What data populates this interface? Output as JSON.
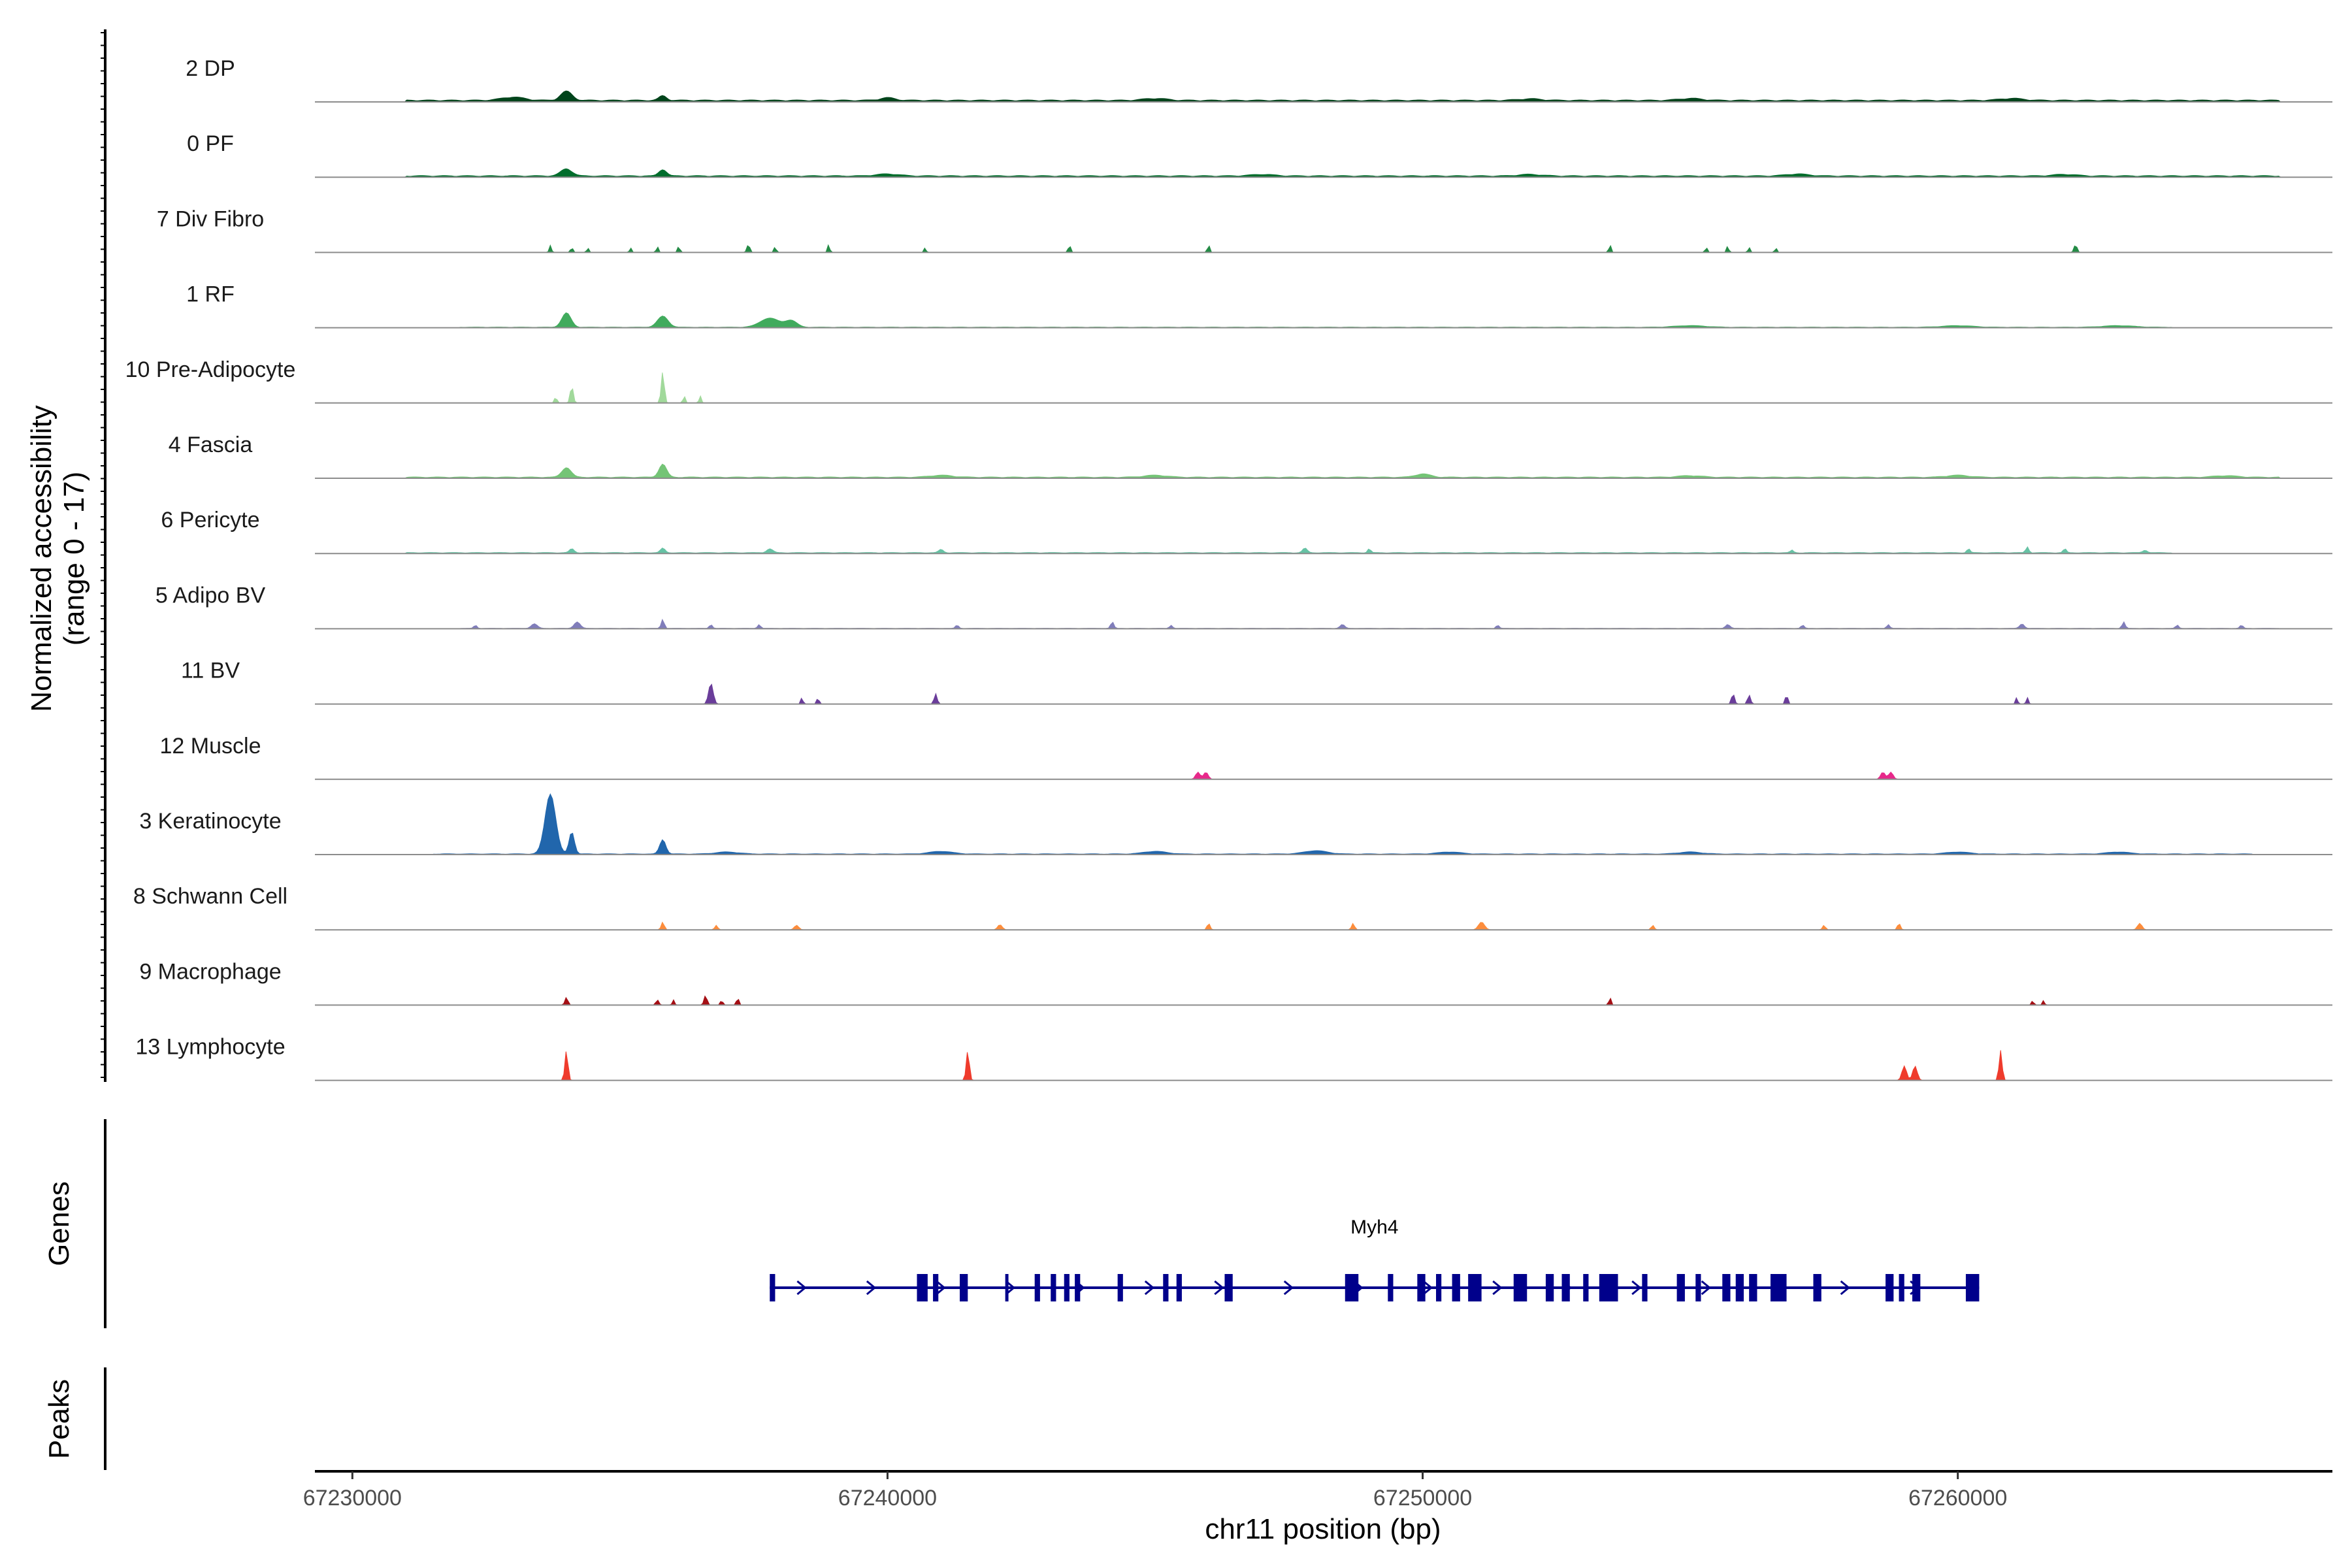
{
  "chart_data": {
    "type": "area",
    "title": "",
    "chromosome": "chr11",
    "xlabel": "chr11 position (bp)",
    "xlim": [
      67229300,
      67267000
    ],
    "xticks": [
      67230000,
      67240000,
      67250000,
      67260000
    ],
    "xtick_labels": [
      "67230000",
      "67240000",
      "67250000",
      "67260000"
    ],
    "accessibility_axis": {
      "label_line1": "Normalized accessibility",
      "label_line2": "(range 0 - 17)",
      "ylim": [
        0,
        17
      ]
    },
    "genes_label": "Genes",
    "peaks_label": "Peaks",
    "tracks": [
      {
        "name": "2 DP",
        "color": "#00441b",
        "baseline": 0.15,
        "peaks": [
          [
            67234000,
            0.7,
            150
          ],
          [
            67235800,
            0.35,
            100
          ],
          [
            67233000,
            0.25,
            300
          ],
          [
            67240000,
            0.2,
            200
          ],
          [
            67245000,
            0.15,
            300
          ],
          [
            67252000,
            0.12,
            300
          ],
          [
            67255000,
            0.15,
            300
          ],
          [
            67261000,
            0.15,
            300
          ]
        ],
        "range": [
          67231000,
          67266000
        ]
      },
      {
        "name": "0 PF",
        "color": "#006d2c",
        "baseline": 0.12,
        "peaks": [
          [
            67234000,
            0.55,
            150
          ],
          [
            67235800,
            0.5,
            100
          ],
          [
            67240000,
            0.15,
            300
          ],
          [
            67247000,
            0.12,
            300
          ],
          [
            67252000,
            0.12,
            300
          ],
          [
            67257000,
            0.15,
            300
          ],
          [
            67262000,
            0.12,
            300
          ]
        ],
        "range": [
          67231000,
          67266000
        ]
      },
      {
        "name": "7 Div Fibro",
        "color": "#238b45",
        "baseline": 0,
        "peaks": [
          [
            67233700,
            0.55,
            30
          ],
          [
            67234100,
            0.4,
            30
          ],
          [
            67234400,
            0.35,
            30
          ],
          [
            67235200,
            0.35,
            30
          ],
          [
            67235700,
            0.45,
            30
          ],
          [
            67236100,
            0.5,
            30
          ],
          [
            67237400,
            0.6,
            40
          ],
          [
            67237900,
            0.45,
            30
          ],
          [
            67238900,
            0.6,
            30
          ],
          [
            67240700,
            0.35,
            30
          ],
          [
            67243400,
            0.6,
            30
          ],
          [
            67246000,
            0.6,
            30
          ],
          [
            67253500,
            0.6,
            30
          ],
          [
            67255300,
            0.4,
            30
          ],
          [
            67255700,
            0.5,
            30
          ],
          [
            67256100,
            0.4,
            30
          ],
          [
            67256600,
            0.35,
            30
          ],
          [
            67262200,
            0.6,
            40
          ]
        ],
        "range": [
          67233000,
          67263000
        ]
      },
      {
        "name": "1 RF",
        "color": "#41ab5d",
        "baseline": 0.05,
        "peaks": [
          [
            67234000,
            1.1,
            120
          ],
          [
            67235800,
            0.85,
            140
          ],
          [
            67237800,
            0.7,
            250
          ],
          [
            67238200,
            0.5,
            150
          ],
          [
            67255000,
            0.12,
            400
          ],
          [
            67260000,
            0.12,
            400
          ],
          [
            67263000,
            0.12,
            400
          ]
        ],
        "range": [
          67232000,
          67264000
        ]
      },
      {
        "name": "10 Pre-Adipocyte",
        "color": "#a1d99b",
        "baseline": 0,
        "peaks": [
          [
            67233800,
            0.5,
            30
          ],
          [
            67234100,
            1.3,
            40
          ],
          [
            67235800,
            2.4,
            40
          ],
          [
            67236200,
            0.55,
            30
          ],
          [
            67236500,
            0.55,
            30
          ]
        ],
        "range": [
          67233500,
          67236800
        ]
      },
      {
        "name": "4 Fascia",
        "color": "#74c476",
        "baseline": 0.1,
        "peaks": [
          [
            67234000,
            0.75,
            120
          ],
          [
            67235800,
            1.0,
            100
          ],
          [
            67241000,
            0.15,
            300
          ],
          [
            67245000,
            0.15,
            300
          ],
          [
            67250000,
            0.25,
            200
          ],
          [
            67255000,
            0.12,
            300
          ],
          [
            67260000,
            0.15,
            300
          ],
          [
            67265000,
            0.12,
            300
          ]
        ],
        "range": [
          67231000,
          67266000
        ]
      },
      {
        "name": "6 Pericyte",
        "color": "#66c2a4",
        "baseline": 0.08,
        "peaks": [
          [
            67234100,
            0.3,
            60
          ],
          [
            67235800,
            0.35,
            60
          ],
          [
            67237800,
            0.3,
            80
          ],
          [
            67241000,
            0.25,
            60
          ],
          [
            67247800,
            0.35,
            60
          ],
          [
            67249000,
            0.3,
            40
          ],
          [
            67256900,
            0.2,
            40
          ],
          [
            67260200,
            0.3,
            40
          ],
          [
            67261300,
            0.45,
            40
          ],
          [
            67262000,
            0.3,
            40
          ],
          [
            67263500,
            0.2,
            60
          ]
        ],
        "range": [
          67231000,
          67264000
        ]
      },
      {
        "name": "5 Adipo BV",
        "color": "#807dba",
        "baseline": 0.04,
        "peaks": [
          [
            67232300,
            0.25,
            40
          ],
          [
            67233400,
            0.35,
            80
          ],
          [
            67234200,
            0.5,
            80
          ],
          [
            67235800,
            0.7,
            40
          ],
          [
            67236700,
            0.3,
            40
          ],
          [
            67237600,
            0.3,
            40
          ],
          [
            67241300,
            0.25,
            40
          ],
          [
            67244200,
            0.5,
            40
          ],
          [
            67245300,
            0.25,
            40
          ],
          [
            67248500,
            0.3,
            60
          ],
          [
            67251400,
            0.25,
            40
          ],
          [
            67255700,
            0.3,
            60
          ],
          [
            67257100,
            0.25,
            40
          ],
          [
            67258700,
            0.3,
            40
          ],
          [
            67261200,
            0.35,
            60
          ],
          [
            67263100,
            0.5,
            40
          ],
          [
            67264100,
            0.25,
            40
          ],
          [
            67265300,
            0.25,
            40
          ]
        ],
        "range": [
          67232000,
          67266000
        ]
      },
      {
        "name": "11 BV",
        "color": "#6a3d9a",
        "baseline": 0,
        "peaks": [
          [
            67236700,
            1.6,
            60
          ],
          [
            67238400,
            0.5,
            30
          ],
          [
            67238700,
            0.5,
            30
          ],
          [
            67240900,
            0.8,
            40
          ],
          [
            67255800,
            0.8,
            40
          ],
          [
            67256100,
            0.7,
            40
          ],
          [
            67256800,
            0.8,
            30
          ],
          [
            67261100,
            0.5,
            30
          ],
          [
            67261300,
            0.5,
            30
          ]
        ],
        "range": [
          67236000,
          67262000
        ]
      },
      {
        "name": "12 Muscle",
        "color": "#e7298a",
        "baseline": 0,
        "peaks": [
          [
            67245800,
            0.55,
            60
          ],
          [
            67245950,
            0.55,
            60
          ],
          [
            67258600,
            0.55,
            60
          ],
          [
            67258750,
            0.55,
            60
          ]
        ],
        "range": [
          67245000,
          67259000
        ]
      },
      {
        "name": "3 Keratinocyte",
        "color": "#2166ac",
        "baseline": 0.06,
        "peaks": [
          [
            67233700,
            4.6,
            140
          ],
          [
            67234100,
            1.7,
            70
          ],
          [
            67235800,
            1.1,
            80
          ],
          [
            67237000,
            0.15,
            300
          ],
          [
            67241000,
            0.2,
            300
          ],
          [
            67245000,
            0.2,
            300
          ],
          [
            67248000,
            0.25,
            300
          ],
          [
            67250500,
            0.15,
            300
          ],
          [
            67255000,
            0.15,
            300
          ],
          [
            67260000,
            0.15,
            300
          ],
          [
            67263000,
            0.15,
            300
          ]
        ],
        "range": [
          67231500,
          67265500
        ]
      },
      {
        "name": "8 Schwann Cell",
        "color": "#fd8d3c",
        "baseline": 0,
        "peaks": [
          [
            67235800,
            0.6,
            40
          ],
          [
            67236800,
            0.35,
            40
          ],
          [
            67238300,
            0.35,
            60
          ],
          [
            67242100,
            0.4,
            60
          ],
          [
            67246000,
            0.5,
            40
          ],
          [
            67248700,
            0.5,
            40
          ],
          [
            67251100,
            0.6,
            80
          ],
          [
            67254300,
            0.35,
            40
          ],
          [
            67257500,
            0.35,
            40
          ],
          [
            67258900,
            0.5,
            40
          ],
          [
            67263400,
            0.5,
            60
          ]
        ],
        "range": [
          67235500,
          67264000
        ]
      },
      {
        "name": "9 Macrophage",
        "color": "#a50f15",
        "baseline": 0,
        "peaks": [
          [
            67234000,
            0.6,
            40
          ],
          [
            67235700,
            0.4,
            40
          ],
          [
            67236000,
            0.4,
            30
          ],
          [
            67236600,
            0.75,
            40
          ],
          [
            67236900,
            0.4,
            30
          ],
          [
            67237200,
            0.6,
            30
          ],
          [
            67253500,
            0.6,
            30
          ],
          [
            67261400,
            0.35,
            30
          ],
          [
            67261600,
            0.35,
            30
          ]
        ],
        "range": [
          67233800,
          67262000
        ]
      },
      {
        "name": "13 Lymphocyte",
        "color": "#ef3b2c",
        "baseline": 0,
        "peaks": [
          [
            67234000,
            2.3,
            40
          ],
          [
            67241500,
            2.3,
            40
          ],
          [
            67259000,
            1.1,
            60
          ],
          [
            67259200,
            1.1,
            60
          ],
          [
            67260800,
            2.3,
            40
          ]
        ],
        "range": [
          67233800,
          67261000
        ]
      }
    ],
    "gene": {
      "name": "Myh4",
      "strand": "+",
      "start": 67237800,
      "end": 67260400,
      "color": "#00008b",
      "exons": [
        [
          67237800,
          67237900
        ],
        [
          67240550,
          67240750
        ],
        [
          67240850,
          67240950
        ],
        [
          67241350,
          67241500
        ],
        [
          67242200,
          67242260
        ],
        [
          67242750,
          67242850
        ],
        [
          67243050,
          67243150
        ],
        [
          67243300,
          67243400
        ],
        [
          67243500,
          67243600
        ],
        [
          67244300,
          67244400
        ],
        [
          67245150,
          67245250
        ],
        [
          67245400,
          67245500
        ],
        [
          67246300,
          67246450
        ],
        [
          67248550,
          67248800
        ],
        [
          67249350,
          67249450
        ],
        [
          67249900,
          67250050
        ],
        [
          67250250,
          67250350
        ],
        [
          67250550,
          67250700
        ],
        [
          67250850,
          67251100
        ],
        [
          67251700,
          67251950
        ],
        [
          67252300,
          67252450
        ],
        [
          67252600,
          67252750
        ],
        [
          67253000,
          67253100
        ],
        [
          67253300,
          67253650
        ],
        [
          67254100,
          67254200
        ],
        [
          67254750,
          67254900
        ],
        [
          67255100,
          67255200
        ],
        [
          67255600,
          67255750
        ],
        [
          67255850,
          67256000
        ],
        [
          67256100,
          67256250
        ],
        [
          67256500,
          67256800
        ],
        [
          67257300,
          67257450
        ],
        [
          67258650,
          67258800
        ],
        [
          67258900,
          67259000
        ],
        [
          67259150,
          67259300
        ],
        [
          67260150,
          67260400
        ]
      ]
    }
  }
}
